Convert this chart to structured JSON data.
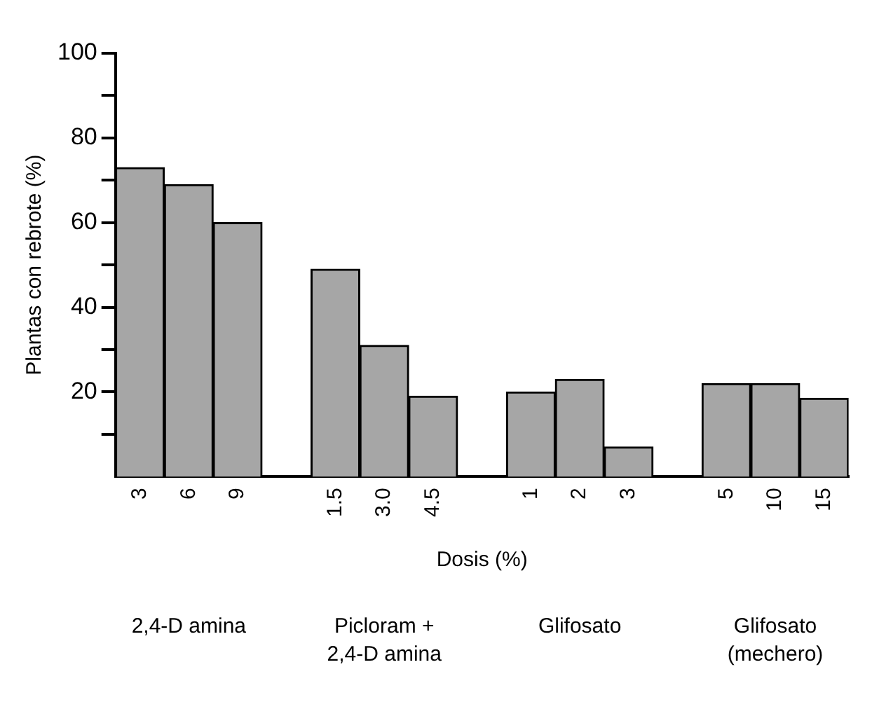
{
  "chart_data": {
    "type": "bar",
    "xlabel": "Dosis (%)",
    "ylabel": "Plantas con rebrote (%)",
    "categories": [
      "3",
      "6",
      "9",
      null,
      "1.5",
      "3.0",
      "4.5",
      null,
      "1",
      "2",
      "3",
      null,
      "5",
      "10",
      "15"
    ],
    "values": [
      73,
      69,
      60,
      null,
      49,
      31,
      19,
      null,
      20,
      23,
      7,
      null,
      22,
      22,
      18.5
    ],
    "color": "#a6a6a6",
    "ylim": [
      0,
      100
    ],
    "yticks": [
      {
        "value": 10,
        "label": null
      },
      20,
      {
        "value": 30,
        "label": null
      },
      40,
      {
        "value": 50,
        "label": null
      },
      60,
      {
        "value": 70,
        "label": null
      },
      80,
      {
        "value": 90,
        "label": null
      },
      100
    ],
    "grid": false,
    "legend": false,
    "annotations": [
      "2,4-D amina",
      "Picloram +\n2,4-D amina",
      "Glifosato",
      "Glifosato\n(mechero)"
    ]
  }
}
